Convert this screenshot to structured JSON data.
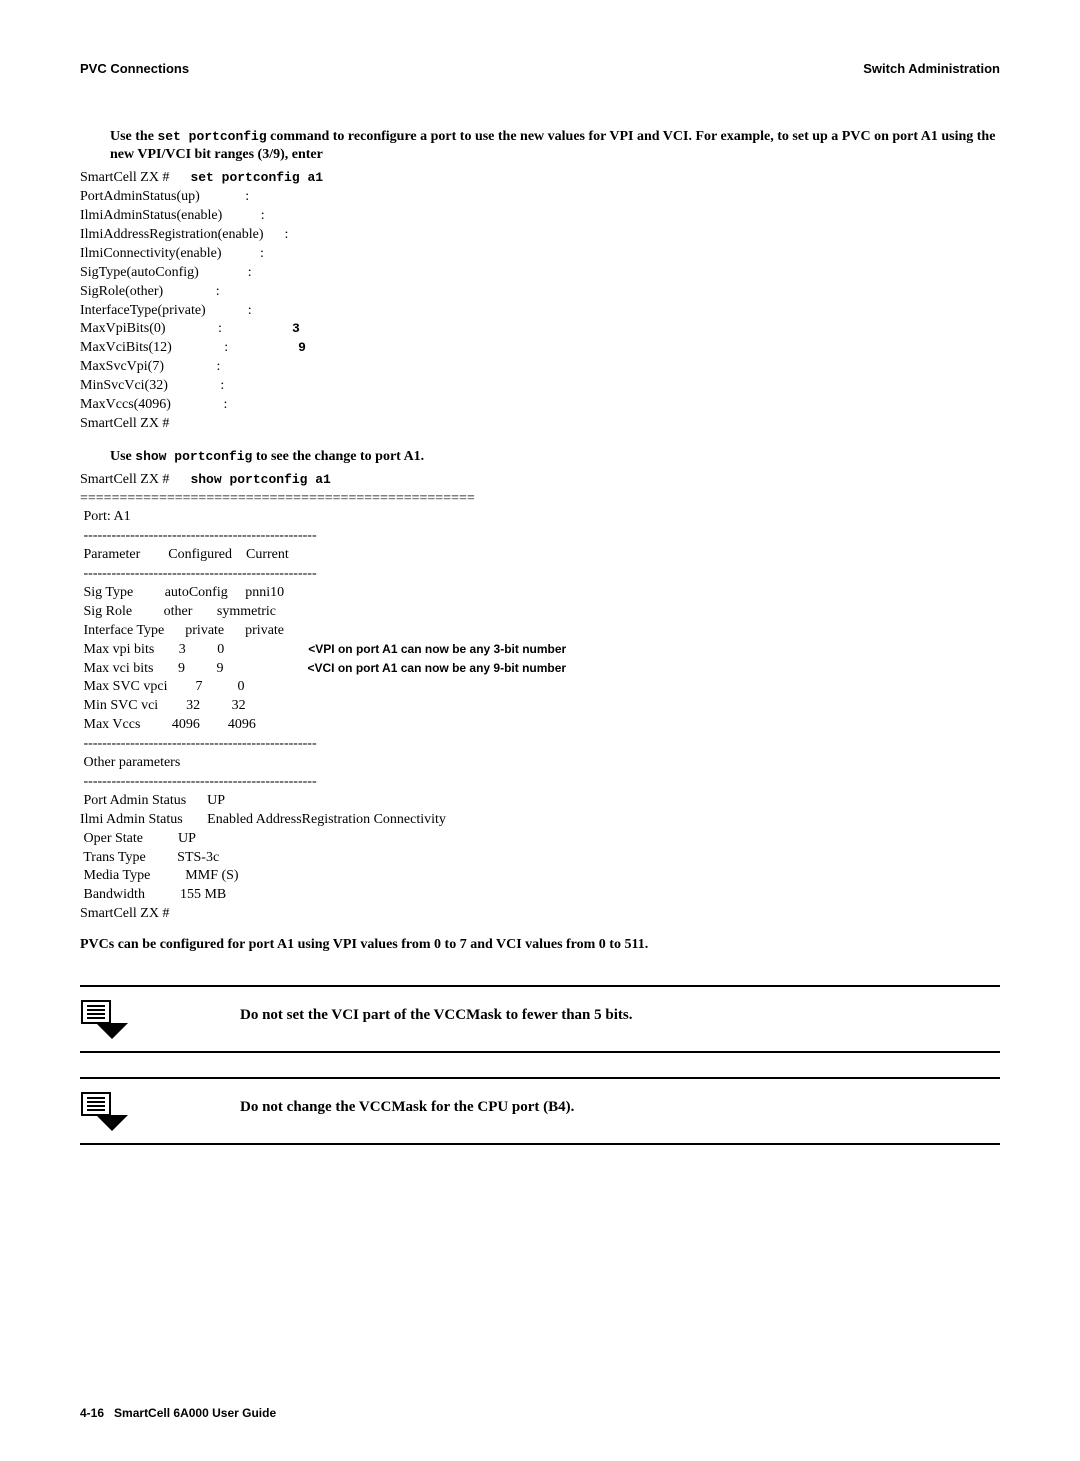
{
  "header": {
    "left": "PVC Connections",
    "right": "Switch Administration"
  },
  "intro": {
    "prefix": "Use the ",
    "cmd": "set portconfig",
    "rest": " command to reconfigure a port to use the new values for VPI and VCI. For example, to set up a PVC on port A1 using the new VPI/VCI bit ranges (3/9), enter"
  },
  "set_block": {
    "prompt": "SmartCell ZX #",
    "cmd": "set portconfig a1",
    "lines": [
      {
        "text": "PortAdminStatus(up)             :"
      },
      {
        "text": "IlmiAdminStatus(enable)           :"
      },
      {
        "text": "IlmiAddressRegistration(enable)      :"
      },
      {
        "text": "IlmiConnectivity(enable)           :"
      },
      {
        "text": "SigType(autoConfig)              :"
      },
      {
        "text": "SigRole(other)               :"
      },
      {
        "text": "InterfaceType(private)            :"
      },
      {
        "text": "MaxVpiBits(0)               :                    ",
        "annot": "3",
        "annot_mono": true
      },
      {
        "text": "MaxVciBits(12)               :                    ",
        "annot": "9",
        "annot_mono": true
      },
      {
        "text": "MaxSvcVpi(7)               :"
      },
      {
        "text": "MinSvcVci(32)               :"
      },
      {
        "text": "MaxVccs(4096)               :"
      },
      {
        "text": "SmartCell ZX #"
      }
    ]
  },
  "mid": {
    "prefix": "Use ",
    "cmd": "show portconfig",
    "rest": " to see the change to port A1."
  },
  "show_block": {
    "prompt": "SmartCell ZX #",
    "cmd": "show portconfig a1",
    "lines": [
      {
        "text": "=================================================="
      },
      {
        "text": " Port: A1"
      },
      {
        "text": " --------------------------------------------------"
      },
      {
        "text": " Parameter        Configured    Current "
      },
      {
        "text": " --------------------------------------------------"
      },
      {
        "text": " Sig Type         autoConfig     pnni10 "
      },
      {
        "text": " Sig Role         other       symmetric"
      },
      {
        "text": " Interface Type      private      private"
      },
      {
        "text": " Max vpi bits       3         0                        ",
        "annot": "<VPI on port A1 can now be any 3-bit number"
      },
      {
        "text": " Max vci bits       9         9                        ",
        "annot": "<VCI on port A1 can now be any 9-bit number"
      },
      {
        "text": " Max SVC vpci        7          0  "
      },
      {
        "text": " Min SVC vci        32         32 "
      },
      {
        "text": " Max Vccs         4096        4096"
      },
      {
        "text": " --------------------------------------------------"
      },
      {
        "text": " Other parameters"
      },
      {
        "text": " --------------------------------------------------"
      },
      {
        "text": " Port Admin Status      UP"
      },
      {
        "text": "Ilmi Admin Status       Enabled AddressRegistration Connectivity"
      },
      {
        "text": " Oper State          UP"
      },
      {
        "text": " Trans Type         STS-3c"
      },
      {
        "text": " Media Type          MMF (S)"
      },
      {
        "text": " Bandwidth          155 MB "
      },
      {
        "text": "SmartCell ZX #"
      }
    ]
  },
  "conclusion": "PVCs can be configured for port A1 using VPI values from 0 to 7 and VCI values from 0 to 511.",
  "notes": [
    {
      "text": "Do not set the VCI part of the VCCMask to fewer than 5 bits."
    },
    {
      "text": "Do not change the VCCMask for the CPU port (B4)."
    }
  ],
  "footer": {
    "page": "4-16",
    "title": "SmartCell 6A000 User Guide"
  },
  "colors": {
    "text": "#000000",
    "bg": "#ffffff"
  }
}
